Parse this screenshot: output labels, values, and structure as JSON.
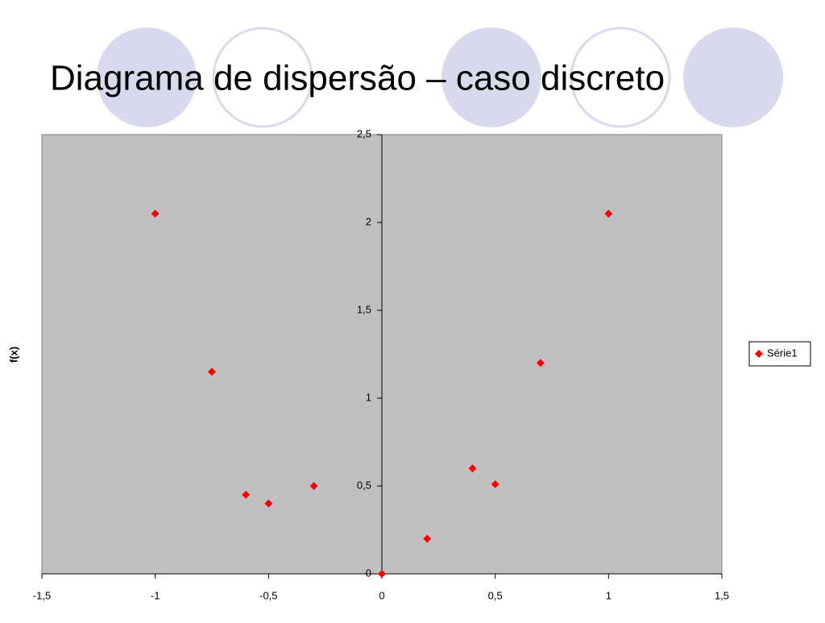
{
  "chart_data": {
    "type": "scatter",
    "title": "Diagrama de dispersão – caso discreto",
    "y_label": "f(x)",
    "series": [
      {
        "name": "Série1",
        "color": "#ff0000",
        "x": [
          -1,
          -0.75,
          -0.6,
          -0.5,
          -0.3,
          0,
          0.2,
          0.4,
          0.5,
          0.7,
          1
        ],
        "values": [
          2.05,
          1.15,
          0.45,
          0.4,
          0.5,
          0,
          0.2,
          0.6,
          0.51,
          1.2,
          2.05
        ]
      }
    ],
    "xlim": [
      -1.5,
      1.5
    ],
    "xticks": [
      {
        "value": -1.5,
        "label": "-1,5"
      },
      -1,
      {
        "value": -0.5,
        "label": "-0,5"
      },
      0,
      {
        "value": 0.5,
        "label": "0,5"
      },
      1,
      {
        "value": 1.5,
        "label": "1,5"
      }
    ],
    "ylim": [
      0,
      2.5
    ],
    "yticks": [
      0,
      {
        "value": 0.5,
        "label": "0,5"
      },
      1,
      {
        "value": 1.5,
        "label": "1,5"
      },
      2,
      {
        "value": 2.5,
        "label": "2,5"
      }
    ],
    "grid": false,
    "legend": "right",
    "plot_background": "#c0c0c0"
  }
}
